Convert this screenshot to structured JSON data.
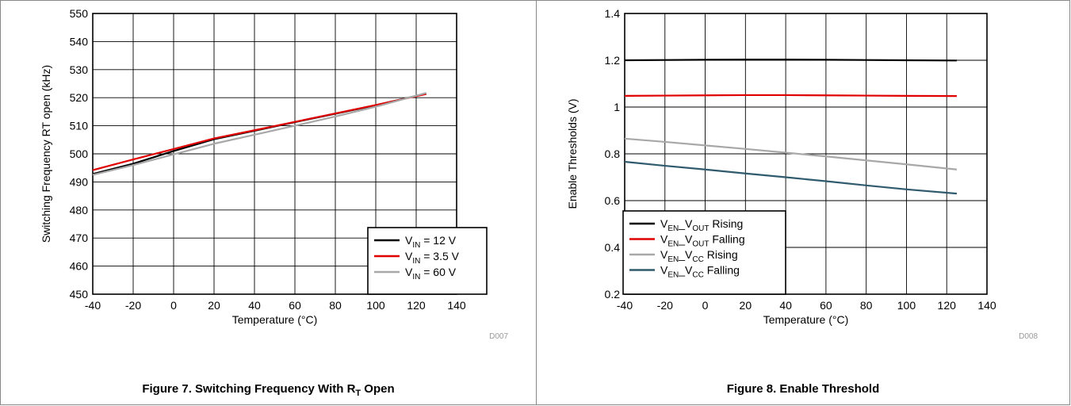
{
  "chart_data": [
    {
      "type": "line",
      "xlabel": "Temperature (°C)",
      "ylabel": "Switching Frequency RT open (kHz)",
      "xlim": [
        -40,
        140
      ],
      "ylim": [
        450,
        550
      ],
      "xticks": [
        -40,
        -20,
        0,
        20,
        40,
        60,
        80,
        100,
        120,
        140
      ],
      "yticks": [
        450,
        460,
        470,
        480,
        490,
        500,
        510,
        520,
        530,
        540,
        550
      ],
      "grid": true,
      "legend_position": "bottom-right",
      "tag": "D007",
      "series": [
        {
          "name": "V_IN = 12 V",
          "label_main": "V",
          "label_sub": "IN",
          "label_rest": " = 12 V",
          "color": "#000000",
          "x": [
            -40,
            -20,
            0,
            20,
            40,
            60,
            80,
            100,
            125
          ],
          "y": [
            492.8,
            496.5,
            501.0,
            505.2,
            508.2,
            511.3,
            514.3,
            517.3,
            521.5
          ]
        },
        {
          "name": "V_IN = 3.5 V",
          "label_main": "V",
          "label_sub": "IN",
          "label_rest": " = 3.5 V",
          "color": "#e00000",
          "x": [
            -40,
            -20,
            0,
            20,
            40,
            60,
            80,
            100,
            125
          ],
          "y": [
            494.2,
            498.0,
            501.7,
            505.5,
            508.4,
            511.4,
            514.4,
            517.4,
            521.3
          ]
        },
        {
          "name": "V_IN = 60 V",
          "label_main": "V",
          "label_sub": "IN",
          "label_rest": " = 60 V",
          "color": "#a8a8a8",
          "x": [
            -40,
            -20,
            0,
            20,
            40,
            60,
            80,
            100,
            125
          ],
          "y": [
            492.5,
            496.0,
            499.8,
            503.6,
            506.8,
            510.0,
            513.3,
            516.8,
            521.7
          ]
        }
      ]
    },
    {
      "type": "line",
      "xlabel": "Temperature (°C)",
      "ylabel": "Enable Thresholds (V)",
      "xlim": [
        -40,
        140
      ],
      "ylim": [
        0.2,
        1.4
      ],
      "xticks": [
        -40,
        -20,
        0,
        20,
        40,
        60,
        80,
        100,
        120,
        140
      ],
      "yticks": [
        0.2,
        0.4,
        0.6,
        0.8,
        1.0,
        1.2,
        1.4
      ],
      "ytick_labels": [
        "0.2",
        "0.4",
        "0.6",
        "0.8",
        "1",
        "1.2",
        "1.4"
      ],
      "grid": true,
      "legend_position": "bottom-left",
      "tag": "D008",
      "series": [
        {
          "name": "V_EN_V_OUT Rising",
          "label_main": "V",
          "label_sub": "EN",
          "label_rest": "_V",
          "label_sub2": "OUT",
          "label_tail": " Rising",
          "color": "#000000",
          "x": [
            -40,
            -20,
            0,
            20,
            40,
            60,
            80,
            100,
            125
          ],
          "y": [
            1.2,
            1.201,
            1.202,
            1.203,
            1.203,
            1.202,
            1.201,
            1.2,
            1.199
          ]
        },
        {
          "name": "V_EN_V_OUT Falling",
          "label_main": "V",
          "label_sub": "EN",
          "label_rest": "_V",
          "label_sub2": "OUT",
          "label_tail": " Falling",
          "color": "#e00000",
          "x": [
            -40,
            -20,
            0,
            20,
            40,
            60,
            80,
            100,
            125
          ],
          "y": [
            1.048,
            1.049,
            1.05,
            1.051,
            1.051,
            1.05,
            1.049,
            1.048,
            1.047
          ]
        },
        {
          "name": "V_EN_V_CC Rising",
          "label_main": "V",
          "label_sub": "EN",
          "label_rest": "_V",
          "label_sub2": "CC",
          "label_tail": " Rising",
          "color": "#a8a8a8",
          "x": [
            -40,
            -20,
            0,
            20,
            40,
            60,
            80,
            100,
            125
          ],
          "y": [
            0.865,
            0.851,
            0.836,
            0.821,
            0.805,
            0.789,
            0.772,
            0.755,
            0.733
          ]
        },
        {
          "name": "V_EN_V_CC Falling",
          "label_main": "V",
          "label_sub": "EN",
          "label_rest": "_V",
          "label_sub2": "CC",
          "label_tail": " Falling",
          "color": "#305a6e",
          "x": [
            -40,
            -20,
            0,
            20,
            40,
            60,
            80,
            100,
            125
          ],
          "y": [
            0.766,
            0.749,
            0.733,
            0.716,
            0.7,
            0.683,
            0.665,
            0.648,
            0.63
          ]
        }
      ]
    }
  ],
  "captions": [
    {
      "before": "Figure 7. Switching Frequency With R",
      "sub": "T",
      "after": " Open"
    },
    {
      "text": "Figure 8. Enable Threshold"
    }
  ]
}
